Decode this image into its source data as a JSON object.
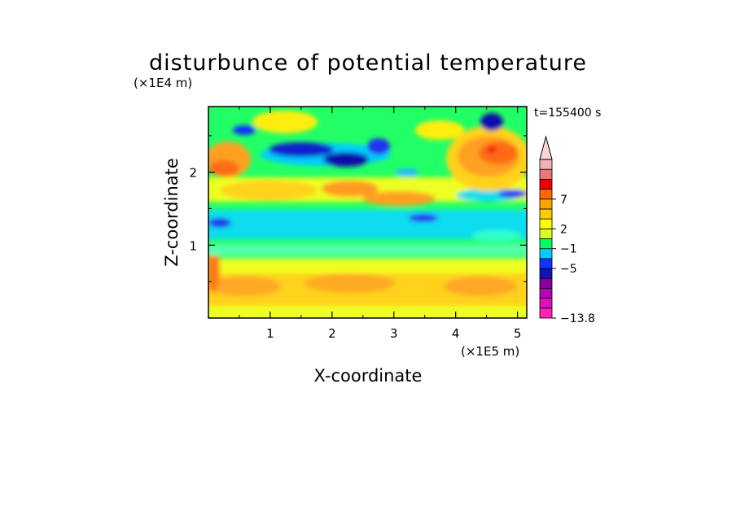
{
  "chart_data": {
    "type": "heatmap",
    "title": "disturbunce of potential temperature",
    "xlabel": "X-coordinate",
    "ylabel": "Z-coordinate",
    "x_scale_label": "(×1E5 m)",
    "y_scale_label": "(×1E4 m)",
    "time_label": "t=155400 s",
    "xlim": [
      0,
      5.15
    ],
    "ylim": [
      0,
      2.9
    ],
    "x_ticks": [
      "1",
      "2",
      "3",
      "4",
      "5"
    ],
    "y_ticks": [
      "1",
      "2"
    ],
    "colorbar": {
      "min": -13.8,
      "labels": [
        "7",
        "2",
        "−1",
        "−5",
        "−13.8"
      ],
      "extend": "max",
      "colors": [
        "#ff22bb",
        "#dd11bb",
        "#bb00bb",
        "#880099",
        "#1111bb",
        "#1133ff",
        "#00ccff",
        "#00ff66",
        "#ddff22",
        "#ffff00",
        "#ffcc00",
        "#ffa500",
        "#ff6600",
        "#ee0000",
        "#e8787a",
        "#f2b2b2"
      ]
    },
    "field_features": [
      {
        "feature": "warm band (orange)",
        "x": [
          0.0,
          5.15
        ],
        "z": [
          0.25,
          0.75
        ]
      },
      {
        "feature": "neutral band (green)",
        "x": [
          0.0,
          5.15
        ],
        "z": [
          0.85,
          1.15
        ]
      },
      {
        "feature": "cool band (cyan)",
        "x": [
          0.0,
          5.15
        ],
        "z": [
          1.2,
          1.6
        ]
      },
      {
        "feature": "warm layer (orange)",
        "x": [
          0.8,
          3.6
        ],
        "z": [
          1.6,
          2.0
        ]
      },
      {
        "feature": "cold core (blue)",
        "x": [
          1.0,
          3.0
        ],
        "z": [
          2.1,
          2.4
        ]
      },
      {
        "feature": "warm core (red)",
        "x": [
          4.1,
          5.15
        ],
        "z": [
          1.9,
          2.5
        ]
      },
      {
        "feature": "cold core (blue)",
        "x": [
          4.4,
          4.8
        ],
        "z": [
          2.55,
          2.8
        ]
      }
    ]
  }
}
